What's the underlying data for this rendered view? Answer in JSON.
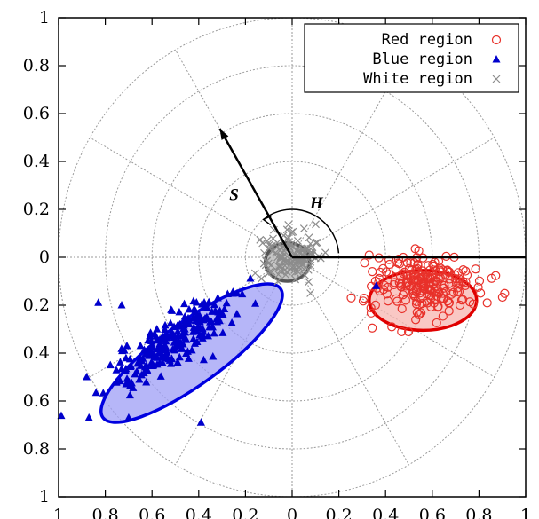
{
  "chart_data": {
    "type": "scatter",
    "title": "",
    "xlabel": "",
    "ylabel": "",
    "xlim": [
      -1,
      1
    ],
    "ylim": [
      -1,
      1
    ],
    "x_tick_labels": [
      "1",
      "0.8",
      "0.6",
      "0.4",
      "0.2",
      "0",
      "0.2",
      "0.4",
      "0.6",
      "0.8",
      "1"
    ],
    "y_tick_labels": [
      "1",
      "0.8",
      "0.6",
      "0.4",
      "0.2",
      "0",
      "0.2",
      "0.4",
      "0.6",
      "0.8",
      "1"
    ],
    "x_ticks": [
      -1,
      -0.8,
      -0.6,
      -0.4,
      -0.2,
      0,
      0.2,
      0.4,
      0.6,
      0.8,
      1
    ],
    "y_ticks": [
      1,
      0.8,
      0.6,
      0.4,
      0.2,
      0,
      -0.2,
      -0.4,
      -0.6,
      -0.8,
      -1
    ],
    "polar_grid": {
      "radii": [
        0.2,
        0.4,
        0.6,
        0.8,
        1.0
      ],
      "spoke_angles_deg": [
        0,
        30,
        60,
        90,
        120,
        150,
        180,
        210,
        240,
        270,
        300,
        330
      ]
    },
    "annotations": {
      "s_label": "S",
      "h_label": "H",
      "s_arrow_angle_deg": 120,
      "s_arrow_length": 0.62,
      "h_arc_radius": 0.1
    },
    "legend": {
      "position": "top-right"
    },
    "series": [
      {
        "name": "Red region",
        "marker": "circle",
        "color": "#e8312a",
        "n": 220,
        "center": [
          0.57,
          -0.11
        ],
        "spread": [
          0.12,
          0.065
        ],
        "ellipse": {
          "center": [
            0.56,
            -0.18
          ],
          "rx": 0.23,
          "ry": 0.125,
          "angle_deg": 0,
          "fill": "#f7b6b0",
          "stroke": "#e00000"
        }
      },
      {
        "name": "Blue region",
        "marker": "triangle",
        "color": "#0000cc",
        "n": 230,
        "center": [
          -0.52,
          -0.36
        ],
        "spread": [
          0.16,
          0.045
        ],
        "angle_deg": 36,
        "ellipse": {
          "center": [
            -0.43,
            -0.4
          ],
          "rx": 0.47,
          "ry": 0.13,
          "angle_deg": 36,
          "fill": "#9e9ef5",
          "stroke": "#0000e0"
        }
      },
      {
        "name": "White region",
        "marker": "cross",
        "color": "#8c8c8c",
        "n": 140,
        "center": [
          -0.01,
          0.01
        ],
        "spread": [
          0.06,
          0.05
        ],
        "ellipse": {
          "center": [
            -0.02,
            -0.02
          ],
          "rx": 0.095,
          "ry": 0.08,
          "angle_deg": 0,
          "fill": "#b3b3b3",
          "stroke": "#555555"
        }
      }
    ]
  }
}
